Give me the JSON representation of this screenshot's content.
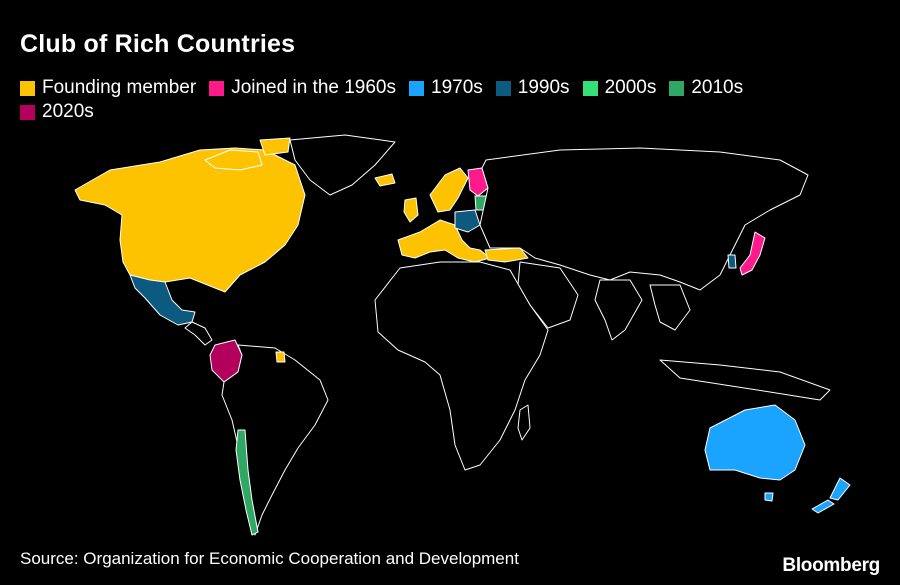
{
  "title": "Club of Rich Countries",
  "legend": [
    {
      "label": "Founding member",
      "color": "#fdc300"
    },
    {
      "label": "Joined in the 1960s",
      "color": "#ff1a8c"
    },
    {
      "label": "1970s",
      "color": "#1aa3ff"
    },
    {
      "label": "1990s",
      "color": "#0c5a80"
    },
    {
      "label": "2000s",
      "color": "#33e07a"
    },
    {
      "label": "2010s",
      "color": "#2fa866"
    },
    {
      "label": "2020s",
      "color": "#b3005c"
    }
  ],
  "source": "Source: Organization for Economic Cooperation and Development",
  "brand": "Bloomberg",
  "map_style": {
    "background": "#000000",
    "border_color": "#ffffff",
    "other_countries_fill": "#000000"
  }
}
